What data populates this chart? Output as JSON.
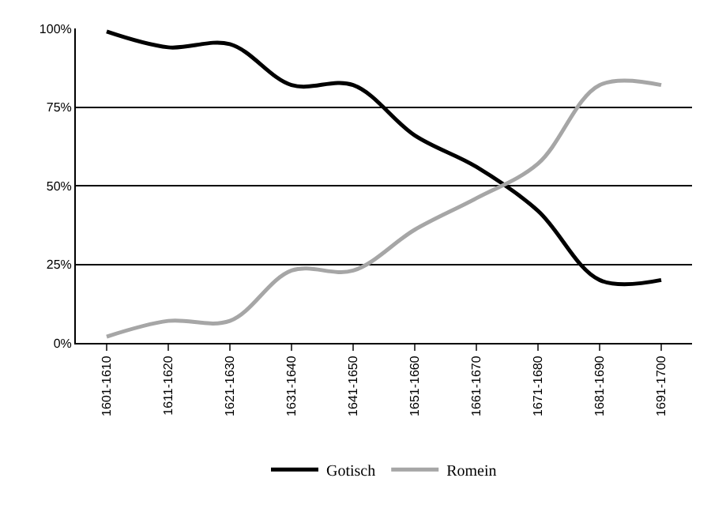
{
  "chart_data": {
    "type": "line",
    "categories": [
      "1601-1610",
      "1611-1620",
      "1621-1630",
      "1631-1640",
      "1641-1650",
      "1651-1660",
      "1661-1670",
      "1671-1680",
      "1681-1690",
      "1691-1700"
    ],
    "series": [
      {
        "name": "Gotisch",
        "color": "#000000",
        "values": [
          99,
          94,
          95,
          82,
          82,
          66,
          56,
          42,
          20,
          20
        ]
      },
      {
        "name": "Romein",
        "color": "#a6a6a6",
        "values": [
          2,
          7,
          7,
          23,
          23,
          36,
          46,
          57,
          82,
          82
        ]
      }
    ],
    "ylim": [
      0,
      100
    ],
    "yticks": [
      {
        "value": 0,
        "label": "0%"
      },
      {
        "value": 25,
        "label": "25%"
      },
      {
        "value": 50,
        "label": "50%"
      },
      {
        "value": 75,
        "label": "75%"
      },
      {
        "value": 100,
        "label": "100%"
      }
    ],
    "grid": "y",
    "legend": "bottom",
    "marker": "none",
    "line_style": "solid"
  }
}
